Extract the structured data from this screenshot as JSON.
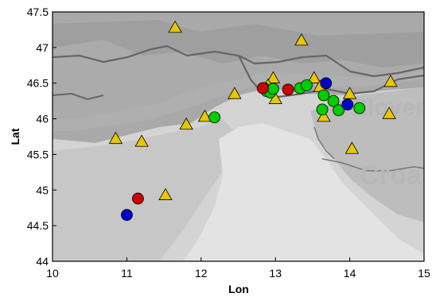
{
  "chart_data": {
    "type": "scatter",
    "title": "",
    "xlabel": "Lon",
    "ylabel": "Lat",
    "xlim": [
      10,
      15
    ],
    "ylim": [
      44,
      47.5
    ],
    "x_ticks": [
      "10",
      "11",
      "12",
      "13",
      "14",
      "15"
    ],
    "y_ticks": [
      "44",
      "44.5",
      "45",
      "45.5",
      "46",
      "46.5",
      "47",
      "47.5"
    ],
    "x_tick_values": [
      10,
      11,
      12,
      13,
      14,
      15
    ],
    "y_tick_values": [
      44,
      44.5,
      45,
      45.5,
      46,
      46.5,
      47,
      47.5
    ],
    "grid": false,
    "background_labels": [
      {
        "text": "Sloven",
        "lon": 14.55,
        "lat": 46.05
      },
      {
        "text": "Croa",
        "lon": 14.55,
        "lat": 45.08
      }
    ],
    "series": [
      {
        "marker": "triangle",
        "color": "#e8c600",
        "points": [
          {
            "lon": 11.65,
            "lat": 47.28
          },
          {
            "lon": 13.35,
            "lat": 47.1
          },
          {
            "lon": 12.97,
            "lat": 46.57
          },
          {
            "lon": 13.52,
            "lat": 46.57
          },
          {
            "lon": 14.55,
            "lat": 46.52
          },
          {
            "lon": 12.9,
            "lat": 46.47
          },
          {
            "lon": 13.6,
            "lat": 46.45
          },
          {
            "lon": 12.45,
            "lat": 46.35
          },
          {
            "lon": 14.0,
            "lat": 46.35
          },
          {
            "lon": 13.0,
            "lat": 46.28
          },
          {
            "lon": 12.05,
            "lat": 46.03
          },
          {
            "lon": 13.65,
            "lat": 46.03
          },
          {
            "lon": 14.53,
            "lat": 46.07
          },
          {
            "lon": 11.8,
            "lat": 45.92
          },
          {
            "lon": 10.85,
            "lat": 45.72
          },
          {
            "lon": 11.2,
            "lat": 45.68
          },
          {
            "lon": 14.03,
            "lat": 45.58
          },
          {
            "lon": 11.52,
            "lat": 44.93
          }
        ]
      },
      {
        "marker": "circle",
        "color": "#00cc00",
        "points": [
          {
            "lon": 12.85,
            "lat": 46.43
          },
          {
            "lon": 12.88,
            "lat": 46.39
          },
          {
            "lon": 12.93,
            "lat": 46.37
          },
          {
            "lon": 12.97,
            "lat": 46.42
          },
          {
            "lon": 13.33,
            "lat": 46.43
          },
          {
            "lon": 13.42,
            "lat": 46.47
          },
          {
            "lon": 13.65,
            "lat": 46.33
          },
          {
            "lon": 13.78,
            "lat": 46.25
          },
          {
            "lon": 13.63,
            "lat": 46.13
          },
          {
            "lon": 13.85,
            "lat": 46.12
          },
          {
            "lon": 14.13,
            "lat": 46.15
          },
          {
            "lon": 12.18,
            "lat": 46.02
          }
        ]
      },
      {
        "marker": "circle",
        "color": "#cc0000",
        "points": [
          {
            "lon": 12.83,
            "lat": 46.43
          },
          {
            "lon": 13.17,
            "lat": 46.41
          },
          {
            "lon": 11.15,
            "lat": 44.88
          }
        ]
      },
      {
        "marker": "circle",
        "color": "#0000cc",
        "points": [
          {
            "lon": 13.68,
            "lat": 46.5
          },
          {
            "lon": 13.97,
            "lat": 46.2
          },
          {
            "lon": 11.0,
            "lat": 44.65
          }
        ]
      }
    ]
  }
}
